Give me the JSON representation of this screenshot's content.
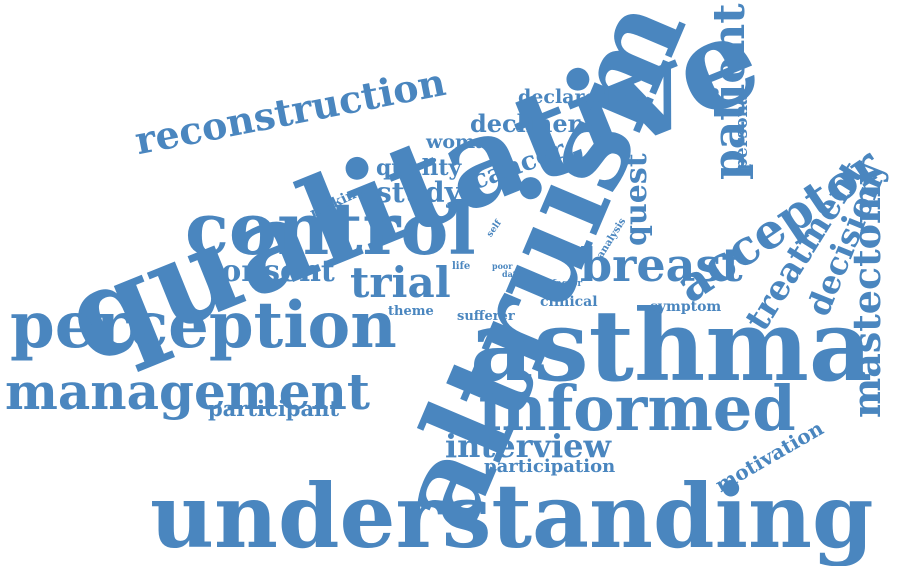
{
  "color": "#4a86bf",
  "words": {
    "qualitative": "qualitative",
    "altruism": "altruism",
    "asthma": "asthma",
    "understanding": "understanding",
    "control": "control",
    "perception": "perception",
    "informed": "informed",
    "management": "management",
    "reconstruction": "reconstruction",
    "acceptor": "acceptor",
    "breast": "breast",
    "patient": "patient",
    "mastectomy": "mastectomy",
    "treatment": "treatment",
    "decision": "decision",
    "trial": "trial",
    "consent": "consent",
    "interview": "interview",
    "quest": "quest",
    "cancer": "cancer",
    "study": "study",
    "quality": "quality",
    "decliner": "decliner",
    "woman": "woman",
    "declared": "declared",
    "participant": "participant",
    "participation": "participation",
    "motivation": "motivation",
    "personal": "personal",
    "making": "making",
    "symptom": "symptom",
    "clinical": "clinical",
    "sufferer": "sufferer",
    "theme": "theme",
    "analysis": "analysis",
    "self": "self",
    "life": "life",
    "poor": "poor",
    "date": "date",
    "factor": "factor"
  }
}
